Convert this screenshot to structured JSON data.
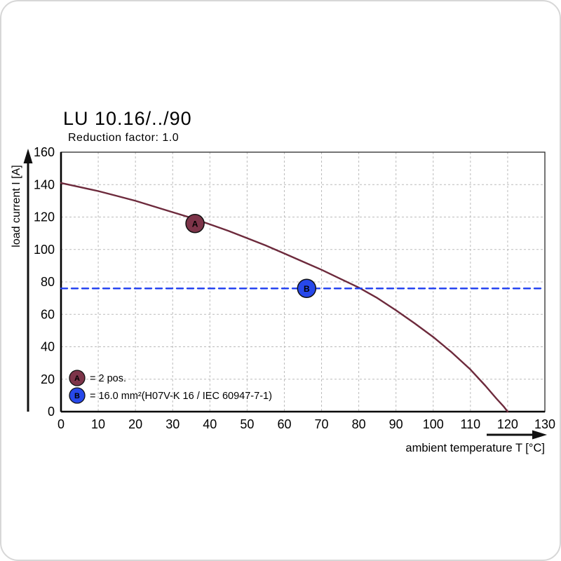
{
  "header": {
    "title": "LU 10.16/../90",
    "subtitle": "Reduction factor: 1.0"
  },
  "chart_data": {
    "type": "line",
    "title": "LU 10.16/../90",
    "subtitle": "Reduction factor: 1.0",
    "xlabel": "ambient temperature T [°C]",
    "ylabel": "load current I [A]",
    "xlim": [
      0,
      130
    ],
    "ylim": [
      0,
      160
    ],
    "xticks": [
      0,
      10,
      20,
      30,
      40,
      50,
      60,
      70,
      80,
      90,
      100,
      110,
      120,
      130
    ],
    "yticks": [
      0,
      20,
      40,
      60,
      80,
      100,
      120,
      140,
      160
    ],
    "grid": true,
    "series": [
      {
        "name": "derating-curve",
        "color": "#6d2a3c",
        "style": "solid",
        "points": [
          [
            0,
            141
          ],
          [
            5,
            138.5
          ],
          [
            10,
            136
          ],
          [
            15,
            133
          ],
          [
            20,
            130
          ],
          [
            25,
            126.5
          ],
          [
            30,
            123
          ],
          [
            35,
            119.5
          ],
          [
            40,
            115.5
          ],
          [
            45,
            111.5
          ],
          [
            50,
            107
          ],
          [
            55,
            102.5
          ],
          [
            60,
            97.5
          ],
          [
            65,
            92.5
          ],
          [
            70,
            87.5
          ],
          [
            75,
            82
          ],
          [
            80,
            76.5
          ],
          [
            85,
            70
          ],
          [
            90,
            62.5
          ],
          [
            95,
            54.5
          ],
          [
            100,
            46
          ],
          [
            105,
            36.5
          ],
          [
            110,
            26
          ],
          [
            114,
            16
          ],
          [
            117,
            8
          ],
          [
            119,
            3
          ],
          [
            120,
            0
          ]
        ]
      },
      {
        "name": "current-limit-line",
        "color": "#1e3df0",
        "style": "dashed",
        "points": [
          [
            0,
            76
          ],
          [
            130,
            76
          ]
        ]
      }
    ],
    "markers": [
      {
        "label": "A",
        "x": 36,
        "y": 116,
        "color": "#7d3449"
      },
      {
        "label": "B",
        "x": 66,
        "y": 76,
        "color": "#2748ea"
      }
    ],
    "legend": [
      {
        "marker": "A",
        "color": "#7d3449",
        "text": "= 2 pos."
      },
      {
        "marker": "B",
        "color": "#2748ea",
        "text": "= 16.0 mm²(H07V-K 16 / IEC 60947-7-1)"
      }
    ],
    "legend_position": "bottom-left"
  }
}
